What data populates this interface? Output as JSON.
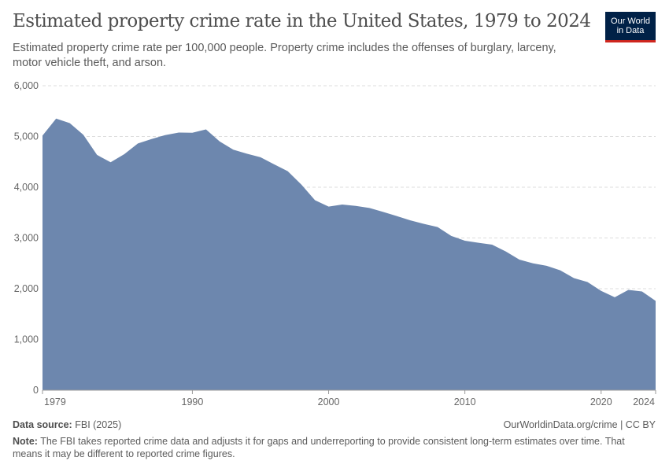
{
  "header": {
    "title": "Estimated property crime rate in the United States, 1979 to 2024",
    "subtitle": "Estimated property crime rate per 100,000 people. Property crime includes the offenses of burglary, larceny, motor vehicle theft, and arson.",
    "logo": "Our World in Data",
    "logo_line1": "Our World",
    "logo_line2": "in Data"
  },
  "footer": {
    "source_label": "Data source:",
    "source": "FBI (2025)",
    "url": "OurWorldinData.org/crime | CC BY",
    "note_label": "Note:",
    "note": "The FBI takes reported crime data and adjusts it for gaps and underreporting to provide consistent long-term estimates over time. That means it may be different to reported crime figures."
  },
  "chart_data": {
    "type": "area",
    "title": "Estimated property crime rate in the United States, 1979 to 2024",
    "xlabel": "",
    "ylabel": "",
    "xlim": [
      1979,
      2024
    ],
    "ylim": [
      0,
      6000
    ],
    "grid": "horizontal dashed",
    "color": "#6d87ae",
    "yticks": [
      "0",
      "1,000",
      "2,000",
      "3,000",
      "4,000",
      "5,000",
      "6,000"
    ],
    "xticks": [
      "1979",
      "1990",
      "2000",
      "2010",
      "2020",
      "2024"
    ],
    "x": [
      1979,
      1980,
      1981,
      1982,
      1983,
      1984,
      1985,
      1986,
      1987,
      1988,
      1989,
      1990,
      1991,
      1992,
      1993,
      1994,
      1995,
      1996,
      1997,
      1998,
      1999,
      2000,
      2001,
      2002,
      2003,
      2004,
      2005,
      2006,
      2007,
      2008,
      2009,
      2010,
      2011,
      2012,
      2013,
      2014,
      2015,
      2016,
      2017,
      2018,
      2019,
      2020,
      2021,
      2022,
      2023,
      2024
    ],
    "values": [
      5017,
      5353,
      5264,
      5033,
      4637,
      4492,
      4651,
      4863,
      4950,
      5027,
      5078,
      5073,
      5140,
      4903,
      4740,
      4660,
      4591,
      4451,
      4316,
      4052,
      3744,
      3618,
      3658,
      3631,
      3591,
      3514,
      3432,
      3346,
      3277,
      3215,
      3041,
      2946,
      2905,
      2868,
      2734,
      2574,
      2500,
      2451,
      2362,
      2210,
      2131,
      1958,
      1832,
      1976,
      1946,
      1760
    ]
  }
}
